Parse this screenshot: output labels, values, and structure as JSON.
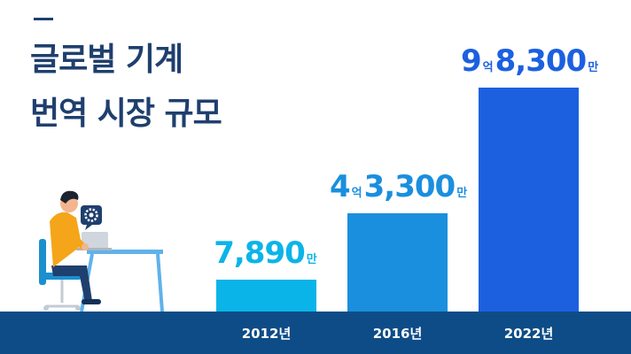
{
  "title": {
    "line1": "글로벌 기계",
    "line2": "번역 시장 규모"
  },
  "colors": {
    "title": "#1f3f6e",
    "footer": "#0e4c87",
    "bar_2012": "#0bb4e8",
    "bar_2016": "#1a8fde",
    "bar_2022": "#1c60e0"
  },
  "icons": [
    "gear-icon",
    "person-at-desk-illustration",
    "laptop-icon"
  ],
  "chart_data": {
    "type": "bar",
    "title": "글로벌 기계 번역 시장 규모",
    "categories": [
      "2012년",
      "2016년",
      "2022년"
    ],
    "values": [
      7890,
      43300,
      98300
    ],
    "unit": "만",
    "labels": [
      {
        "big": "7,890",
        "small_after": "만"
      },
      {
        "big_before": "4",
        "small_mid": "억",
        "big": "3,300",
        "small_after": "만"
      },
      {
        "big_before": "9",
        "small_mid": "억",
        "big": "8,300",
        "small_after": "만"
      }
    ],
    "ylim": [
      0,
      98300
    ]
  }
}
